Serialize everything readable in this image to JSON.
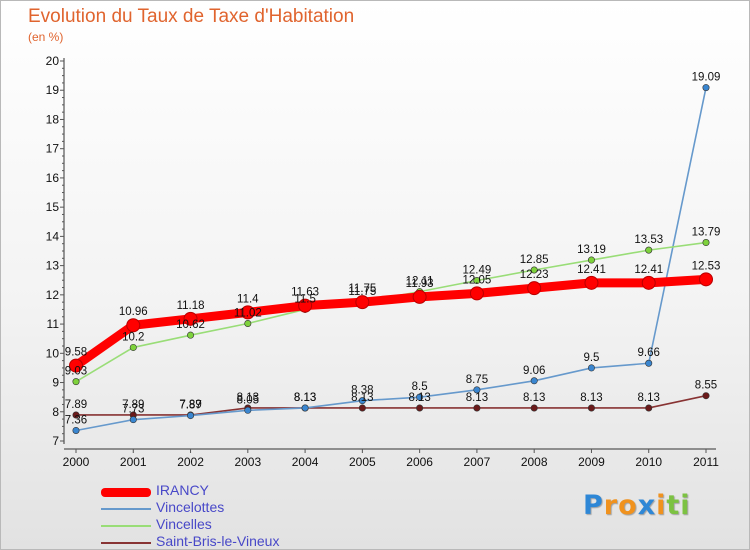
{
  "chart_data": {
    "type": "line",
    "title": "Evolution du Taux de Taxe d'Habitation",
    "subtitle": "(en %)",
    "x": [
      "2000",
      "2001",
      "2002",
      "2003",
      "2004",
      "2005",
      "2006",
      "2007",
      "2008",
      "2009",
      "2010",
      "2011"
    ],
    "ylim": [
      7,
      20
    ],
    "yticks": [
      "7",
      "8",
      "9",
      "10",
      "11",
      "12",
      "13",
      "14",
      "15",
      "16",
      "17",
      "18",
      "19",
      "20"
    ],
    "grid": false,
    "legend_position": "bottom-left",
    "series": [
      {
        "name": "IRANCY",
        "color": "#ff0000",
        "values": [
          9.58,
          10.96,
          11.18,
          11.4,
          11.63,
          11.75,
          11.93,
          12.05,
          12.23,
          12.41,
          12.41,
          12.53
        ],
        "labels": [
          "9.58",
          "10.96",
          "11.18",
          "11.4",
          "11.63",
          "11.75",
          "11.93",
          "12.05",
          "12.23",
          "12.41",
          "12.41",
          "12.53"
        ]
      },
      {
        "name": "Vincelottes",
        "color": "#6699cc",
        "marker": "#3a86d0",
        "values": [
          7.36,
          7.73,
          7.87,
          8.05,
          8.13,
          8.38,
          8.5,
          8.75,
          9.06,
          9.5,
          9.66,
          19.09
        ],
        "labels": [
          "7.36",
          "7.73",
          "7.87",
          "8.05",
          "8.13",
          "8.38",
          "8.5",
          "8.75",
          "9.06",
          "9.5",
          "9.66",
          "19.09"
        ]
      },
      {
        "name": "Vincelles",
        "color": "#99dd77",
        "marker": "#7ed23c",
        "values": [
          9.03,
          10.2,
          10.62,
          11.02,
          11.5,
          11.75,
          12.11,
          12.49,
          12.85,
          13.19,
          13.53,
          13.79
        ],
        "labels": [
          "9.03",
          "10.2",
          "10.62",
          "11.02",
          "11.5",
          "11.75",
          "12.11",
          "12.49",
          "12.85",
          "13.19",
          "13.53",
          "13.79"
        ]
      },
      {
        "name": "Saint-Bris-le-Vineux",
        "color": "#883333",
        "marker": "#6b1a1a",
        "values": [
          7.89,
          7.89,
          7.89,
          8.13,
          8.13,
          8.13,
          8.13,
          8.13,
          8.13,
          8.13,
          8.13,
          8.55
        ],
        "labels": [
          "7.89",
          "7.89",
          "7.89",
          "8.13",
          "8.13",
          "8.13",
          "8.13",
          "8.13",
          "8.13",
          "8.13",
          "8.13",
          "8.55"
        ]
      }
    ]
  },
  "brand": {
    "text": "Proxiti",
    "letter_colors": [
      "#2e87d6",
      "#f0921e",
      "#f0921e",
      "#2e87d6",
      "#f0921e",
      "#7cc242",
      "#7cc242"
    ]
  }
}
